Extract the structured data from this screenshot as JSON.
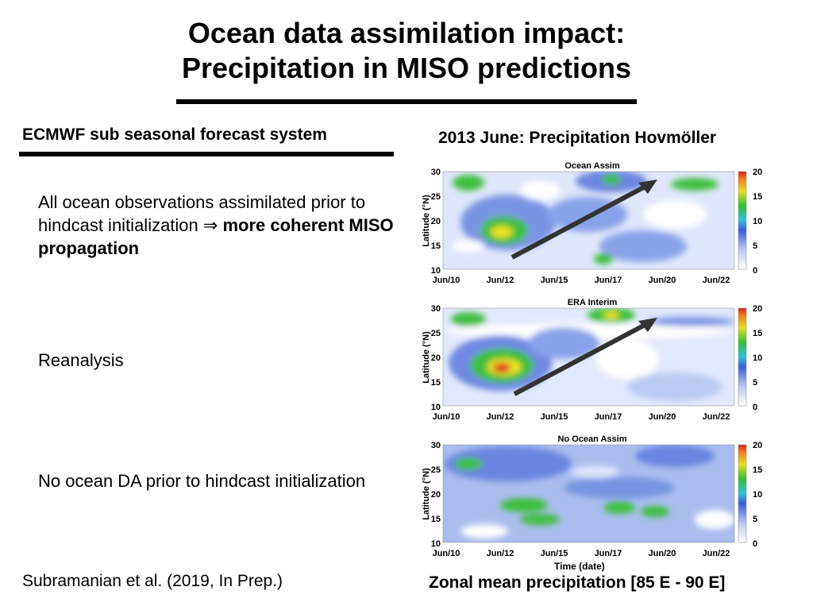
{
  "title": {
    "line1": "Ocean data assimilation impact:",
    "line2": "Precipitation in MISO predictions"
  },
  "left": {
    "heading": "ECMWF sub seasonal forecast system",
    "block1_plain": "All ocean observations assimilated prior to hindcast initialization ⇒ ",
    "block1_bold": "more coherent MISO propagation",
    "block2": "Reanalysis",
    "block3": "No ocean DA prior to hindcast initialization",
    "citation": "Subramanian et al. (2019, In Prep.)"
  },
  "right": {
    "heading": "2013 June: Precipitation Hovmöller",
    "caption": "Zonal mean precipitation [85 E - 90 E]",
    "xlabel": "Time (date)",
    "ylabel": "Latitude (°N)",
    "xticks": [
      "Jun/10",
      "Jun/12",
      "Jun/15",
      "Jun/17",
      "Jun/20",
      "Jun/22"
    ],
    "yticks": [
      "30",
      "25",
      "20",
      "15",
      "10"
    ],
    "cbar_ticks": [
      "20",
      "15",
      "10",
      "5",
      "0"
    ],
    "panels": [
      {
        "title": "Ocean Assim"
      },
      {
        "title": "ERA Interim"
      },
      {
        "title": "No Ocean Assim"
      }
    ],
    "colors": {
      "low": "#ffffff",
      "light_blue": "#b8c8f0",
      "blue": "#5a78dc",
      "green": "#3cbf3c",
      "yellow": "#e8e020",
      "red": "#e02020",
      "arrow": "#333333"
    }
  }
}
